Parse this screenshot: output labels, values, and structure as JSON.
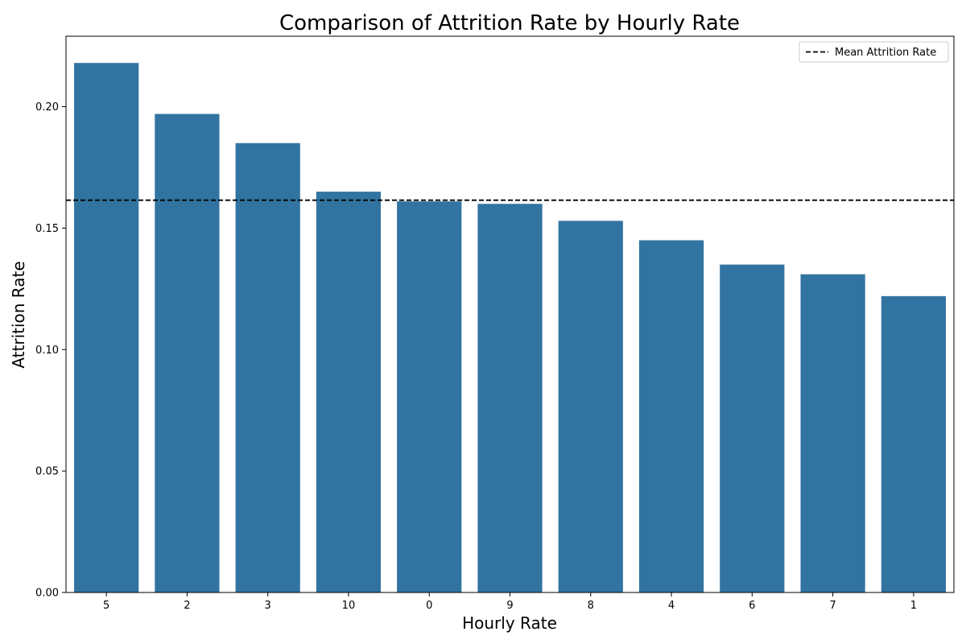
{
  "chart_data": {
    "type": "bar",
    "title": "Comparison of Attrition Rate by Hourly Rate",
    "xlabel": "Hourly Rate",
    "ylabel": "Attrition Rate",
    "categories": [
      "5",
      "2",
      "3",
      "10",
      "0",
      "9",
      "8",
      "4",
      "6",
      "7",
      "1"
    ],
    "values": [
      0.218,
      0.197,
      0.185,
      0.165,
      0.161,
      0.16,
      0.153,
      0.145,
      0.135,
      0.131,
      0.122
    ],
    "ylim": [
      0,
      0.229
    ],
    "yticks": [
      "0.00",
      "0.05",
      "0.10",
      "0.15",
      "0.20"
    ],
    "mean_line": {
      "value": 0.1615,
      "label": "Mean Attrition Rate",
      "style": "dashed",
      "color": "#000000"
    },
    "bar_color": "#3274a1",
    "grid": false,
    "legend": "top-right"
  }
}
